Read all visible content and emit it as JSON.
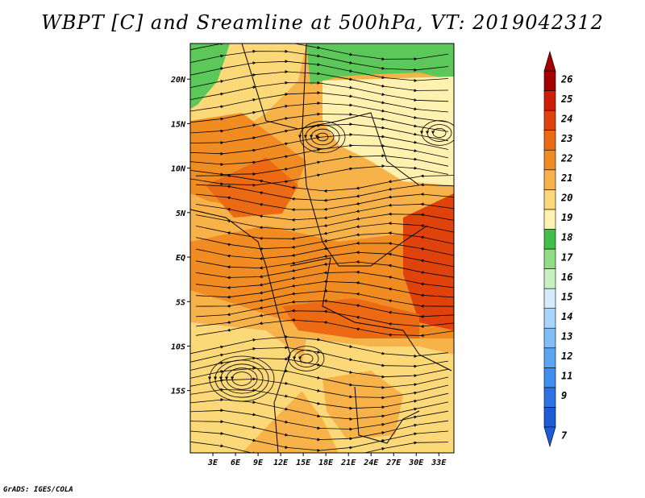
{
  "title": "WBPT [C] and Sreamline at 500hPa, VT: 2019042312",
  "credit": "GrADS: IGES/COLA",
  "map": {
    "lon_range": [
      0,
      35
    ],
    "lat_range": [
      -22,
      24
    ],
    "lon_ticks": [
      "3E",
      "6E",
      "9E",
      "12E",
      "15E",
      "18E",
      "21E",
      "24E",
      "27E",
      "30E",
      "33E"
    ],
    "lon_tick_values": [
      3,
      6,
      9,
      12,
      15,
      18,
      21,
      24,
      27,
      30,
      33
    ],
    "lat_ticks": [
      "20N",
      "15N",
      "10N",
      "5N",
      "EQ",
      "5S",
      "10S",
      "15S"
    ],
    "lat_tick_values": [
      20,
      15,
      10,
      5,
      0,
      -5,
      -10,
      -15
    ],
    "field": "WBPT",
    "units": "C",
    "level": "500hPa",
    "valid_time": "2019042312"
  },
  "colorbar": {
    "labels": [
      "7",
      "9",
      "11",
      "12",
      "13",
      "14",
      "15",
      "16",
      "17",
      "18",
      "19",
      "20",
      "21",
      "22",
      "23",
      "24",
      "25",
      "26"
    ],
    "colors": [
      "#1c5cd6",
      "#2c74e6",
      "#3f8ef0",
      "#5aa6f5",
      "#7fbef8",
      "#a8d5fb",
      "#d6ecfc",
      "#c8f0c0",
      "#90de84",
      "#40c048",
      "#fff2b0",
      "#fbd978",
      "#f7b24a",
      "#f18c22",
      "#ec6a14",
      "#e0420c",
      "#cc2006",
      "#a50000"
    ],
    "extend": "both"
  },
  "map_colors": {
    "land_outline": "#000000",
    "streamline": "#000000",
    "cool": "#5cc85a",
    "warm_base": "#f7b24a"
  }
}
